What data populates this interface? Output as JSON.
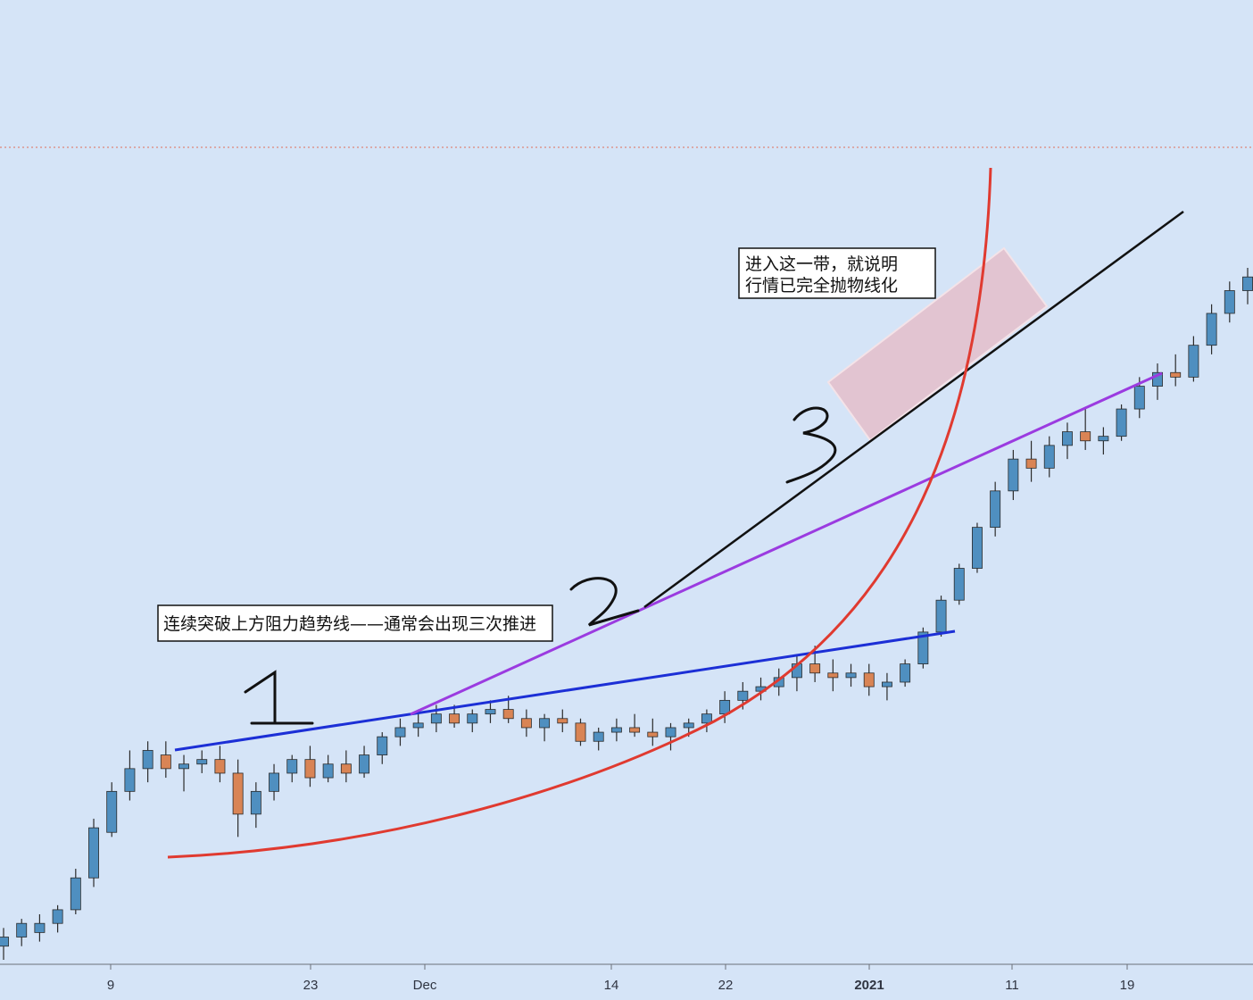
{
  "chart_data": {
    "type": "candlestick",
    "title": "",
    "xlabel": "",
    "ylabel": "",
    "x_tick_labels": [
      "9",
      "23",
      "Dec",
      "14",
      "22",
      "2021",
      "11",
      "19"
    ],
    "ohlc_note": "Daily price candles, early Nov 2020 to late Jan 2021; price axis not shown, values are relative units (higher = higher price).",
    "candles": [
      [
        1.0,
        1.4,
        0.7,
        1.2
      ],
      [
        1.2,
        1.6,
        1.0,
        1.5
      ],
      [
        1.3,
        1.7,
        1.1,
        1.5
      ],
      [
        1.5,
        1.9,
        1.3,
        1.8
      ],
      [
        1.8,
        2.7,
        1.7,
        2.5
      ],
      [
        2.5,
        3.8,
        2.3,
        3.6
      ],
      [
        3.5,
        4.6,
        3.4,
        4.4
      ],
      [
        4.4,
        5.3,
        4.2,
        4.9
      ],
      [
        4.9,
        5.5,
        4.6,
        5.3
      ],
      [
        5.2,
        5.5,
        4.7,
        4.9
      ],
      [
        4.9,
        5.2,
        4.4,
        5.0
      ],
      [
        5.0,
        5.3,
        4.8,
        5.1
      ],
      [
        5.1,
        5.4,
        4.6,
        4.8
      ],
      [
        4.8,
        5.1,
        3.4,
        3.9
      ],
      [
        3.9,
        4.6,
        3.6,
        4.4
      ],
      [
        4.4,
        5.0,
        4.2,
        4.8
      ],
      [
        4.8,
        5.2,
        4.6,
        5.1
      ],
      [
        5.1,
        5.4,
        4.5,
        4.7
      ],
      [
        4.7,
        5.2,
        4.6,
        5.0
      ],
      [
        5.0,
        5.3,
        4.6,
        4.8
      ],
      [
        4.8,
        5.4,
        4.7,
        5.2
      ],
      [
        5.2,
        5.7,
        5.0,
        5.6
      ],
      [
        5.6,
        6.0,
        5.4,
        5.8
      ],
      [
        5.8,
        6.2,
        5.6,
        5.9
      ],
      [
        5.9,
        6.3,
        5.7,
        6.1
      ],
      [
        6.1,
        6.3,
        5.8,
        5.9
      ],
      [
        5.9,
        6.2,
        5.7,
        6.1
      ],
      [
        6.1,
        6.4,
        5.9,
        6.2
      ],
      [
        6.2,
        6.5,
        5.9,
        6.0
      ],
      [
        6.0,
        6.2,
        5.6,
        5.8
      ],
      [
        5.8,
        6.1,
        5.5,
        6.0
      ],
      [
        6.0,
        6.2,
        5.7,
        5.9
      ],
      [
        5.9,
        6.0,
        5.4,
        5.5
      ],
      [
        5.5,
        5.8,
        5.3,
        5.7
      ],
      [
        5.7,
        6.0,
        5.5,
        5.8
      ],
      [
        5.8,
        6.1,
        5.6,
        5.7
      ],
      [
        5.7,
        6.0,
        5.4,
        5.6
      ],
      [
        5.6,
        5.9,
        5.3,
        5.8
      ],
      [
        5.8,
        6.0,
        5.6,
        5.9
      ],
      [
        5.9,
        6.2,
        5.7,
        6.1
      ],
      [
        6.1,
        6.6,
        5.9,
        6.4
      ],
      [
        6.4,
        6.8,
        6.2,
        6.6
      ],
      [
        6.6,
        6.9,
        6.4,
        6.7
      ],
      [
        6.7,
        7.1,
        6.5,
        6.9
      ],
      [
        6.9,
        7.4,
        6.6,
        7.2
      ],
      [
        7.2,
        7.6,
        6.8,
        7.0
      ],
      [
        7.0,
        7.3,
        6.6,
        6.9
      ],
      [
        6.9,
        7.2,
        6.7,
        7.0
      ],
      [
        7.0,
        7.2,
        6.5,
        6.7
      ],
      [
        6.7,
        7.0,
        6.4,
        6.8
      ],
      [
        6.8,
        7.3,
        6.7,
        7.2
      ],
      [
        7.2,
        8.0,
        7.1,
        7.9
      ],
      [
        7.9,
        8.7,
        7.8,
        8.6
      ],
      [
        8.6,
        9.4,
        8.5,
        9.3
      ],
      [
        9.3,
        10.3,
        9.2,
        10.2
      ],
      [
        10.2,
        11.2,
        10.0,
        11.0
      ],
      [
        11.0,
        11.9,
        10.8,
        11.7
      ],
      [
        11.7,
        12.1,
        11.2,
        11.5
      ],
      [
        11.5,
        12.2,
        11.3,
        12.0
      ],
      [
        12.0,
        12.5,
        11.7,
        12.3
      ],
      [
        12.3,
        12.8,
        11.9,
        12.1
      ],
      [
        12.1,
        12.4,
        11.8,
        12.2
      ],
      [
        12.2,
        12.9,
        12.1,
        12.8
      ],
      [
        12.8,
        13.5,
        12.6,
        13.3
      ],
      [
        13.3,
        13.8,
        13.0,
        13.6
      ],
      [
        13.6,
        14.0,
        13.3,
        13.5
      ],
      [
        13.5,
        14.4,
        13.4,
        14.2
      ],
      [
        14.2,
        15.1,
        14.0,
        14.9
      ],
      [
        14.9,
        15.6,
        14.7,
        15.4
      ],
      [
        15.4,
        15.9,
        15.1,
        15.7
      ]
    ],
    "candles_format": [
      "open",
      "high",
      "low",
      "close"
    ],
    "annotations": {
      "box_top_text_line1": "进入这一带，就说明",
      "box_top_text_line2": "行情已完全抛物线化",
      "box_bottom_text": "连续突破上方阻力趋势线——通常会出现三次推进",
      "handwritten_numbers": [
        "1",
        "2",
        "3"
      ]
    },
    "lines": [
      {
        "name": "blue-trendline",
        "color": "#1c2fd6"
      },
      {
        "name": "purple-trendline",
        "color": "#9b3be0"
      },
      {
        "name": "black-trendline",
        "color": "#111111"
      },
      {
        "name": "red-parabolic-curve",
        "color": "#e03a30"
      }
    ],
    "colors": {
      "background": "#d5e4f7",
      "up_candle": "#4f8fc0",
      "down_candle": "#d98455",
      "wick": "#2b2b2b",
      "highlight_zone": "#e6b9c4",
      "dotted_line": "#e06e5a"
    }
  }
}
